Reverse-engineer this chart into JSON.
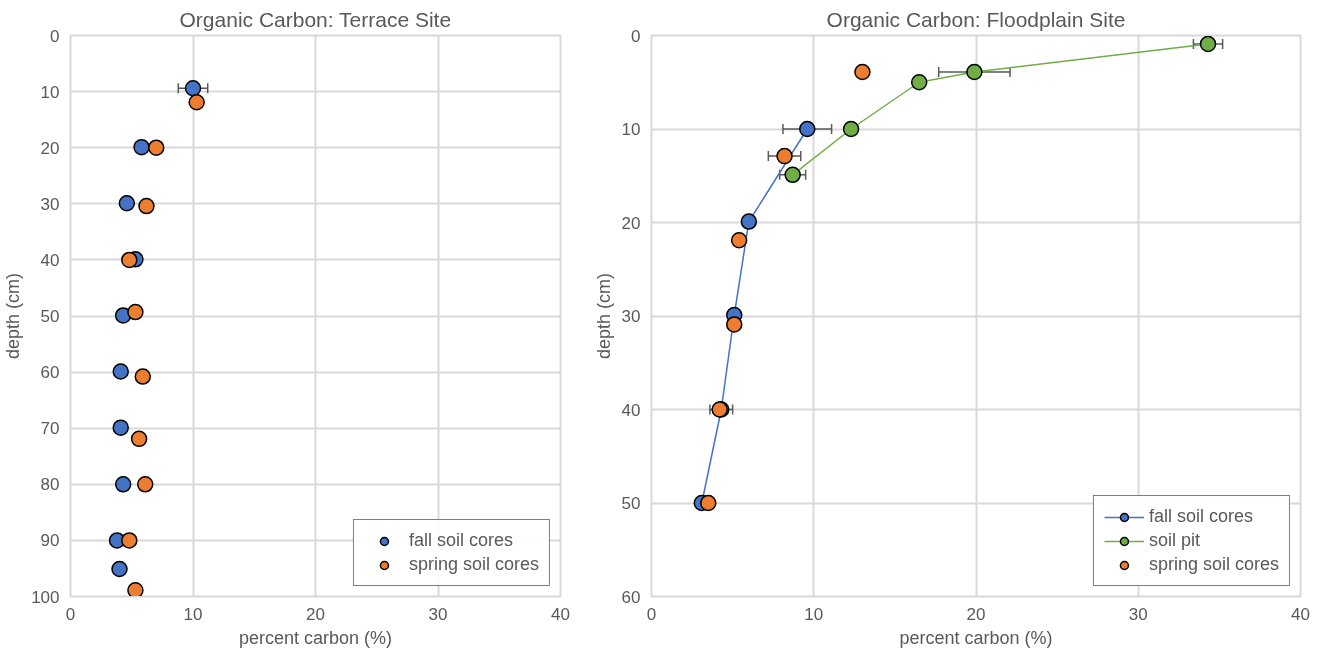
{
  "chart_data": [
    {
      "type": "scatter",
      "title": "Organic Carbon: Terrace Site",
      "xlabel": "percent carbon (%)",
      "ylabel": "depth (cm)",
      "xlim": [
        0,
        40
      ],
      "xticks": [
        0,
        10,
        20,
        30,
        40
      ],
      "ylim": [
        100,
        0
      ],
      "yticks": [
        0,
        10,
        20,
        30,
        40,
        50,
        60,
        70,
        80,
        90,
        100
      ],
      "grid": true,
      "legend": "bottom right",
      "marker": "circle",
      "series": [
        {
          "name": "fall soil cores",
          "color": "#4472c4",
          "x": [
            10.0,
            5.8,
            4.6,
            5.3,
            4.3,
            4.1,
            4.1,
            4.3,
            3.8,
            4.0
          ],
          "values": [
            9.4,
            19.9,
            29.9,
            39.9,
            49.9,
            59.9,
            69.9,
            80,
            90,
            95.1
          ],
          "xerrors": [
            1.2,
            null,
            null,
            null,
            null,
            null,
            null,
            null,
            null,
            null
          ]
        },
        {
          "name": "spring soil cores",
          "color": "#ed7d31",
          "x": [
            10.3,
            7.0,
            6.2,
            4.8,
            5.3,
            5.9,
            5.6,
            6.1,
            4.8,
            5.3
          ],
          "values": [
            11.9,
            20,
            30.4,
            40,
            49.3,
            60.8,
            71.9,
            80,
            90,
            98.9
          ]
        }
      ]
    },
    {
      "type": "scatter",
      "title": "Organic Carbon: Floodplain Site",
      "xlabel": "percent carbon (%)",
      "ylabel": "depth (cm)",
      "xlim": [
        0,
        40
      ],
      "xticks": [
        0,
        10,
        20,
        30,
        40
      ],
      "ylim": [
        60,
        0
      ],
      "yticks": [
        0,
        10,
        20,
        30,
        40,
        50,
        60
      ],
      "grid": true,
      "legend": "bottom right",
      "marker": "circle",
      "series": [
        {
          "name": "fall soil cores",
          "type": "line",
          "color": "#4472c4",
          "x": [
            9.6,
            6.0,
            5.1,
            4.3,
            3.1
          ],
          "values": [
            10,
            19.9,
            29.9,
            40,
            50
          ],
          "xerrors": [
            1.5,
            null,
            null,
            0.7,
            null
          ]
        },
        {
          "name": "soil pit",
          "type": "line",
          "color": "#70ad47",
          "x": [
            34.3,
            19.9,
            16.5,
            12.3,
            8.7
          ],
          "values": [
            0.9,
            3.9,
            5.0,
            10,
            14.9
          ],
          "xerrors": [
            0.9,
            2.2,
            null,
            null,
            0.8
          ]
        },
        {
          "name": "spring soil cores",
          "color": "#ed7d31",
          "x": [
            13.0,
            8.2,
            5.4,
            5.1,
            4.2,
            3.5
          ],
          "values": [
            3.9,
            12.9,
            21.9,
            30.9,
            40,
            50
          ],
          "xerrors": [
            null,
            1.0,
            null,
            null,
            null,
            null
          ]
        }
      ]
    }
  ]
}
